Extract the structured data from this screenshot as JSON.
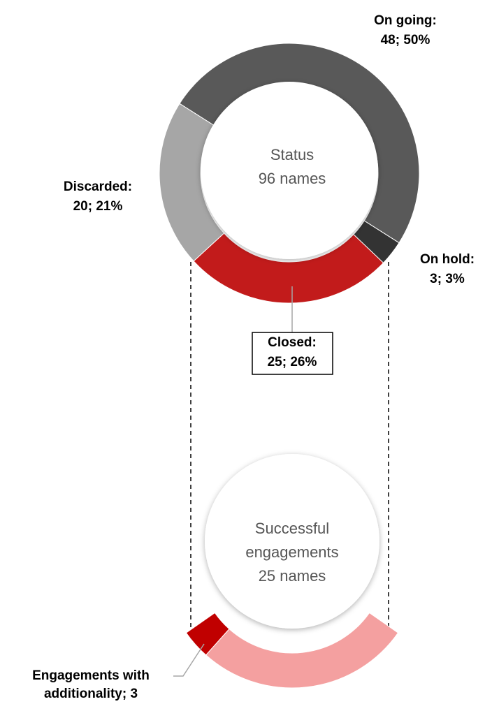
{
  "chart_data": [
    {
      "type": "donut",
      "title": "Status",
      "subtitle": "96 names",
      "categories": [
        "On going:",
        "On hold:",
        "Closed:",
        "Discarded:"
      ],
      "values": [
        48,
        3,
        25,
        20
      ],
      "value_labels": [
        "48; 50%",
        "3; 3%",
        "25; 26%",
        "20; 21%"
      ],
      "colors": [
        "#595959",
        "#333333",
        "#c21b1b",
        "#a6a6a6"
      ]
    },
    {
      "type": "donut",
      "title": "Successful engagements",
      "subtitle": "25 names",
      "categories": [
        "Engagements with additionality;",
        null
      ],
      "values": [
        3,
        22
      ],
      "colors": [
        "#c00000",
        "#f4a0a0"
      ]
    }
  ]
}
